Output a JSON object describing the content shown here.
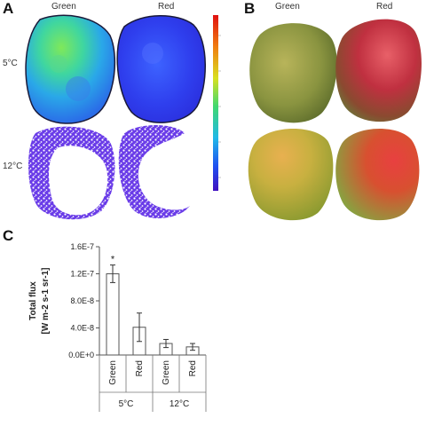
{
  "panels": {
    "a": {
      "letter": "A",
      "columns": [
        "Green",
        "Red"
      ],
      "rows": [
        "5°C",
        "12°C"
      ],
      "colorbar": {
        "ticks": [
          "",
          "",
          "",
          "",
          "",
          ""
        ],
        "unit": "",
        "note_lines": [
          "",
          ""
        ]
      }
    },
    "b": {
      "letter": "B",
      "columns": [
        "Green",
        "Red"
      ]
    },
    "c": {
      "letter": "C"
    }
  },
  "chart_data": {
    "type": "bar",
    "ylabel_lines": [
      "Total flux",
      "[W m-2 s-1 sr-1]"
    ],
    "ylim": [
      0,
      1.6e-07
    ],
    "yticks": [
      0,
      4e-08,
      8e-08,
      1.2e-07,
      1.6e-07
    ],
    "ytick_labels": [
      "0.0E+0",
      "4.0E-8",
      "8.0E-8",
      "1.2E-7",
      "1.6E-7"
    ],
    "categories": [
      "Green",
      "Red",
      "Green",
      "Red"
    ],
    "groups": [
      {
        "label": "5°C",
        "members": [
          0,
          1
        ]
      },
      {
        "label": "12°C",
        "members": [
          2,
          3
        ]
      }
    ],
    "values": [
      1.2e-07,
      4.1e-08,
      1.7e-08,
      1.2e-08
    ],
    "errors": [
      1.3e-08,
      2.1e-08,
      6e-09,
      5e-09
    ],
    "annotations": [
      "*",
      "",
      "",
      ""
    ],
    "bar_fill": "#ffffff",
    "bar_stroke": "#555555"
  },
  "colors": {
    "imaging_background": "#ffffff",
    "fruit_outline": "#1a1a3a"
  }
}
